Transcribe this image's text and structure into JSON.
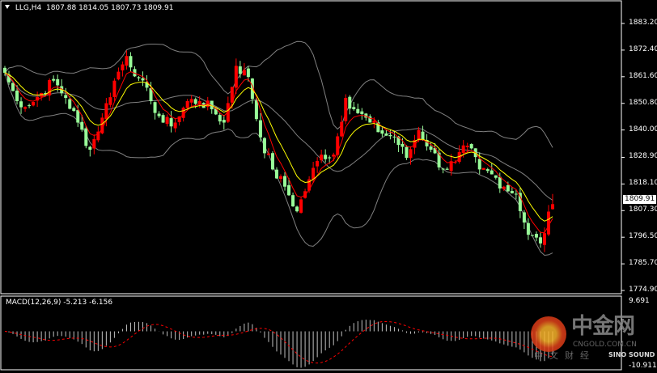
{
  "header": {
    "symbol": "LLG,H4",
    "open": "1807.88",
    "high": "1814.05",
    "low": "1807.73",
    "close": "1809.91"
  },
  "current_price": "1809.91",
  "macd": {
    "label": "MACD(12,26,9) -5.213 -6.156",
    "axis_max": "9.691",
    "axis_min": "-10.911"
  },
  "price_axis": [
    "1883.20",
    "1872.40",
    "1861.60",
    "1850.80",
    "1840.00",
    "1828.90",
    "1818.10",
    "1807.30",
    "1796.50",
    "1785.70",
    "1774.90"
  ],
  "watermark": {
    "name": "中金网",
    "url": "CNGOLD.COM.CN",
    "sub": "中文财经",
    "partner": "SINO SOUND"
  },
  "colors": {
    "bull": "#ff0000",
    "bear": "#98fb98",
    "ma_fast": "#ff0000",
    "ma_slow": "#ffff00",
    "bands": "#808080",
    "signal": "#ff0000",
    "histogram": "#c0c0c0"
  },
  "chart_data": {
    "type": "candlestick",
    "timeframe": "H4",
    "ylim": [
      1774.9,
      1883.2
    ],
    "close_path": [
      1863.2,
      1851.7,
      1850,
      1855,
      1860,
      1853,
      1843,
      1832,
      1845,
      1860,
      1870,
      1861,
      1851.7,
      1843,
      1843,
      1851.7,
      1851.7,
      1848.4,
      1843,
      1866,
      1861.5,
      1837,
      1824,
      1817,
      1807,
      1820,
      1830,
      1830,
      1853,
      1846.8,
      1843,
      1838.5,
      1837,
      1828.7,
      1840,
      1832,
      1824,
      1827,
      1833.6,
      1824,
      1822,
      1817,
      1814,
      1797.5,
      1794,
      1809.91
    ],
    "indicators": [
      "Bollinger Bands",
      "Moving Average fast",
      "Moving Average slow",
      "MACD(12,26,9)"
    ]
  }
}
